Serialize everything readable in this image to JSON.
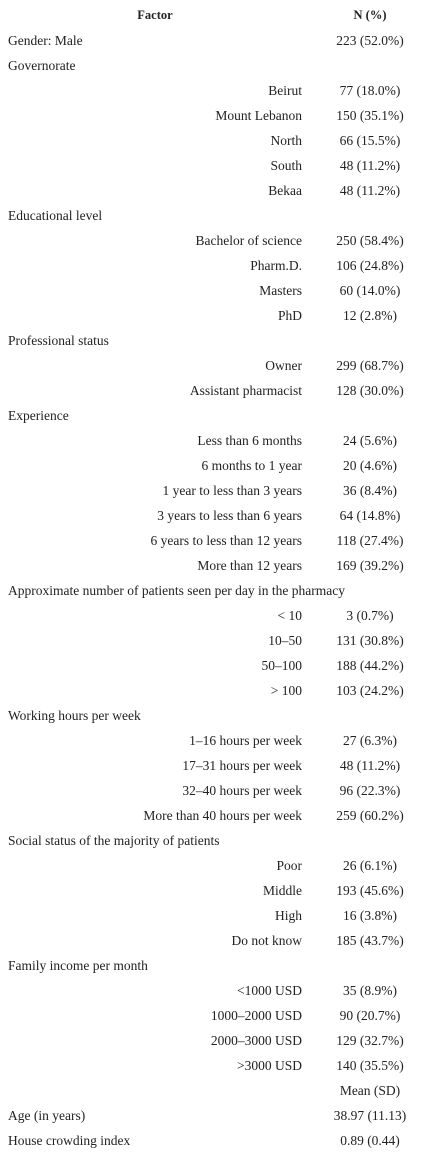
{
  "table": {
    "header": [
      "Factor",
      "N (%)"
    ],
    "rows": [
      {
        "label": "Gender: Male",
        "value": "223 (52.0%)"
      },
      {
        "label": "Governorate",
        "items": [
          {
            "label": "Beirut",
            "value": "77 (18.0%)"
          },
          {
            "label": "Mount Lebanon",
            "value": "150 (35.1%)"
          },
          {
            "label": "North",
            "value": "66 (15.5%)"
          },
          {
            "label": "South",
            "value": "48 (11.2%)"
          },
          {
            "label": "Bekaa",
            "value": "48 (11.2%)"
          }
        ]
      },
      {
        "label": "Educational level",
        "items": [
          {
            "label": "Bachelor of science",
            "value": "250 (58.4%)"
          },
          {
            "label": "Pharm.D.",
            "value": "106 (24.8%)"
          },
          {
            "label": "Masters",
            "value": "60 (14.0%)"
          },
          {
            "label": "PhD",
            "value": "12 (2.8%)"
          }
        ]
      },
      {
        "label": "Professional status",
        "items": [
          {
            "label": "Owner",
            "value": "299 (68.7%)"
          },
          {
            "label": "Assistant pharmacist",
            "value": "128 (30.0%)"
          }
        ]
      },
      {
        "label": "Experience",
        "items": [
          {
            "label": "Less than 6 months",
            "value": "24 (5.6%)"
          },
          {
            "label": "6 months to 1 year",
            "value": "20 (4.6%)"
          },
          {
            "label": "1 year to less than 3 years",
            "value": "36 (8.4%)"
          },
          {
            "label": "3 years to less than 6 years",
            "value": "64 (14.8%)"
          },
          {
            "label": "6 years to less than 12 years",
            "value": "118 (27.4%)"
          },
          {
            "label": "More than 12 years",
            "value": "169 (39.2%)"
          }
        ]
      },
      {
        "label": "Approximate number of patients seen per day in the pharmacy",
        "items": [
          {
            "label": "< 10",
            "value": "3 (0.7%)"
          },
          {
            "label": "10–50",
            "value": "131 (30.8%)"
          },
          {
            "label": "50–100",
            "value": "188 (44.2%)"
          },
          {
            "label": "> 100",
            "value": "103 (24.2%)"
          }
        ]
      },
      {
        "label": "Working hours per week",
        "items": [
          {
            "label": "1–16 hours per week",
            "value": "27 (6.3%)"
          },
          {
            "label": "17–31 hours per week",
            "value": "48 (11.2%)"
          },
          {
            "label": "32–40 hours per week",
            "value": "96 (22.3%)"
          },
          {
            "label": "More than 40 hours per week",
            "value": "259 (60.2%)"
          }
        ]
      },
      {
        "label": "Social status of the majority of patients",
        "items": [
          {
            "label": "Poor",
            "value": "26 (6.1%)"
          },
          {
            "label": "Middle",
            "value": "193 (45.6%)"
          },
          {
            "label": "High",
            "value": "16 (3.8%)"
          },
          {
            "label": "Do not know",
            "value": "185 (43.7%)"
          }
        ]
      },
      {
        "label": "Family income per month",
        "items": [
          {
            "label": "<1000 USD",
            "value": "35 (8.9%)"
          },
          {
            "label": "1000–2000 USD",
            "value": "90 (20.7%)"
          },
          {
            "label": "2000–3000 USD",
            "value": "129 (32.7%)"
          },
          {
            "label": ">3000 USD",
            "value": "140 (35.5%)"
          }
        ]
      },
      {
        "value": "Mean (SD)"
      },
      {
        "label": "Age (in years)",
        "value": "38.97 (11.13)"
      },
      {
        "label": "House crowding index",
        "value": "0.89 (0.44)"
      }
    ]
  }
}
